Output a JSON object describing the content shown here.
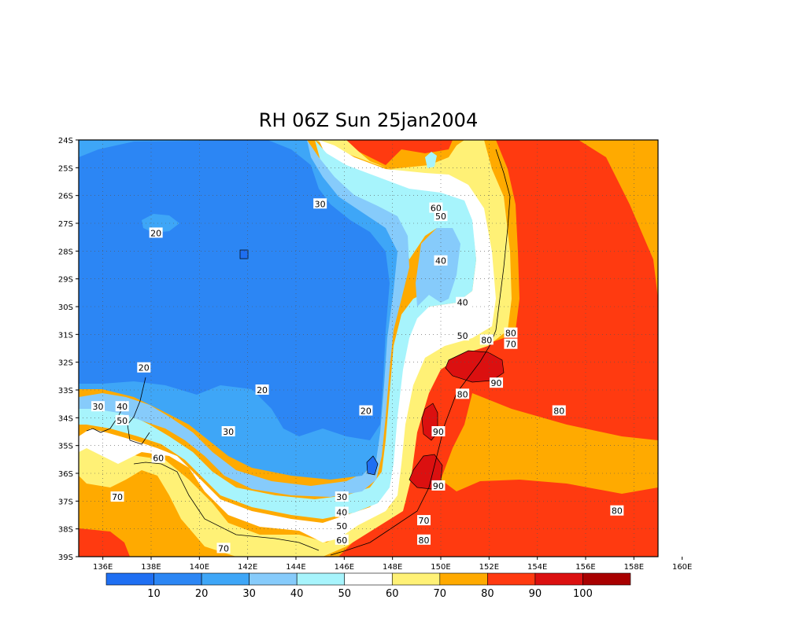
{
  "title": "RH 06Z Sun 25jan2004",
  "map": {
    "lat_labels": [
      "24S",
      "25S",
      "26S",
      "27S",
      "28S",
      "29S",
      "30S",
      "31S",
      "32S",
      "33S",
      "34S",
      "35S",
      "36S",
      "37S",
      "38S",
      "39S"
    ],
    "lon_labels": [
      "136E",
      "138E",
      "140E",
      "142E",
      "144E",
      "146E",
      "148E",
      "150E",
      "152E",
      "154E",
      "156E",
      "158E",
      "160E"
    ],
    "lon_range": [
      135,
      159
    ],
    "lat_range": [
      -39,
      -24
    ],
    "grid": "dotted",
    "contour_labels": [
      {
        "text": "20",
        "lon": 138.2,
        "lat": -27.35
      },
      {
        "text": "30",
        "lon": 145.0,
        "lat": -26.3
      },
      {
        "text": "60",
        "lon": 149.8,
        "lat": -26.45
      },
      {
        "text": "50",
        "lon": 150.0,
        "lat": -26.75
      },
      {
        "text": "40",
        "lon": 150.0,
        "lat": -28.35
      },
      {
        "text": "40",
        "lon": 150.9,
        "lat": -29.85
      },
      {
        "text": "50",
        "lon": 150.9,
        "lat": -31.05
      },
      {
        "text": "80",
        "lon": 151.9,
        "lat": -31.2
      },
      {
        "text": "80",
        "lon": 152.9,
        "lat": -30.95
      },
      {
        "text": "70",
        "lon": 152.9,
        "lat": -31.35
      },
      {
        "text": "90",
        "lon": 152.3,
        "lat": -32.75
      },
      {
        "text": "80",
        "lon": 150.9,
        "lat": -33.15
      },
      {
        "text": "80",
        "lon": 154.9,
        "lat": -33.75
      },
      {
        "text": "20",
        "lon": 137.7,
        "lat": -32.2
      },
      {
        "text": "20",
        "lon": 142.6,
        "lat": -33.0
      },
      {
        "text": "30",
        "lon": 135.8,
        "lat": -33.6
      },
      {
        "text": "40",
        "lon": 136.8,
        "lat": -33.6
      },
      {
        "text": "50",
        "lon": 136.8,
        "lat": -34.1
      },
      {
        "text": "20",
        "lon": 146.9,
        "lat": -33.75
      },
      {
        "text": "30",
        "lon": 141.2,
        "lat": -34.5
      },
      {
        "text": "90",
        "lon": 149.9,
        "lat": -34.5
      },
      {
        "text": "60",
        "lon": 138.3,
        "lat": -35.45
      },
      {
        "text": "90",
        "lon": 149.9,
        "lat": -36.45
      },
      {
        "text": "70",
        "lon": 136.6,
        "lat": -36.85
      },
      {
        "text": "30",
        "lon": 145.9,
        "lat": -36.85
      },
      {
        "text": "40",
        "lon": 145.9,
        "lat": -37.4
      },
      {
        "text": "70",
        "lon": 149.3,
        "lat": -37.7
      },
      {
        "text": "50",
        "lon": 145.9,
        "lat": -37.9
      },
      {
        "text": "80",
        "lon": 157.3,
        "lat": -37.35
      },
      {
        "text": "60",
        "lon": 145.9,
        "lat": -38.4
      },
      {
        "text": "80",
        "lon": 149.3,
        "lat": -38.4
      },
      {
        "text": "70",
        "lon": 141.0,
        "lat": -38.7
      }
    ]
  },
  "colorbar": {
    "labels": [
      "10",
      "20",
      "30",
      "40",
      "50",
      "60",
      "70",
      "80",
      "90",
      "100"
    ],
    "colors": [
      "#1f6ff2",
      "#2c86f4",
      "#3ea6f7",
      "#86cbfb",
      "#a7f4fc",
      "#ffffff",
      "#fff176",
      "#ffaa00",
      "#ff3a10",
      "#db1010",
      "#a80000"
    ]
  },
  "colors": {
    "rh_lt10": "#1f6ff2",
    "rh_10_20": "#2c86f4",
    "rh_20_30": "#3ea6f7",
    "rh_30_40": "#86cbfb",
    "rh_40_50": "#a7f4fc",
    "rh_50_60": "#ffffff",
    "rh_60_70": "#fff176",
    "rh_70_80": "#ffaa00",
    "rh_80_90": "#ff3a10",
    "rh_90_100": "#db1010"
  }
}
